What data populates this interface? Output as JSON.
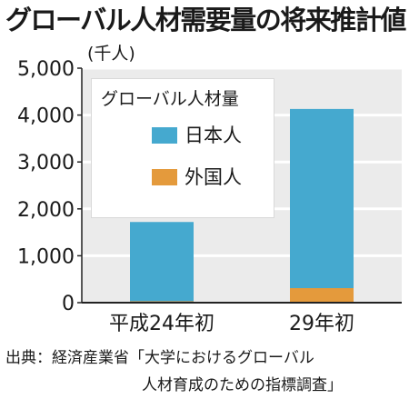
{
  "title": "グローバル人材需要量の将来推計値",
  "unit_label": "(千人)",
  "source_line1": "出典：経済産業省「大学におけるグローバル",
  "source_line2": "人材育成のための指標調査」",
  "colors": {
    "japanese": "#45a9cf",
    "foreign": "#e49a3c",
    "plot_bg": "#ebebeb",
    "axis": "#222222"
  },
  "legend": {
    "title": "グローバル人材量",
    "items": [
      {
        "label": "日本人",
        "color": "#45a9cf"
      },
      {
        "label": "外国人",
        "color": "#e49a3c"
      }
    ]
  },
  "chart_data": {
    "type": "bar",
    "stacked": true,
    "title": "グローバル人材需要量の将来推計値",
    "ylabel": "(千人)",
    "xlabel": "",
    "categories": [
      "平成24年初",
      "29年初"
    ],
    "series": [
      {
        "name": "日本人",
        "values": [
          1690,
          3820
        ]
      },
      {
        "name": "外国人",
        "values": [
          30,
          310
        ]
      }
    ],
    "ylim": [
      0,
      5000
    ],
    "yticks": [
      0,
      1000,
      2000,
      3000,
      4000,
      5000
    ],
    "ytick_labels": [
      "0",
      "1,000",
      "2,000",
      "3,000",
      "4,000",
      "5,000"
    ],
    "grid": true,
    "legend_position": "top-left"
  }
}
